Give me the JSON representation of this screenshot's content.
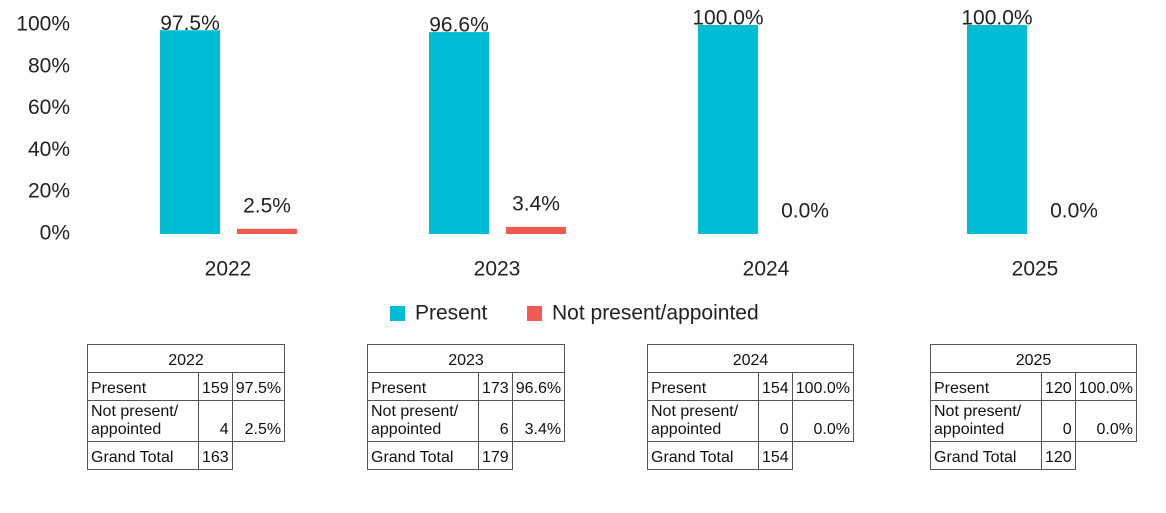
{
  "chart_data": {
    "type": "bar",
    "categories": [
      "2022",
      "2023",
      "2024",
      "2025"
    ],
    "series": [
      {
        "name": "Present",
        "color": "#00bcd4",
        "values": [
          97.5,
          96.6,
          100,
          100
        ],
        "value_labels": [
          "97.5%",
          "96.6%",
          "100.0%",
          "100.0%"
        ]
      },
      {
        "name": "Not present/appointed",
        "color": "#f05a50",
        "values": [
          2.5,
          3.4,
          0,
          0
        ],
        "value_labels": [
          "2.5%",
          "3.4%",
          "0.0%",
          "0.0%"
        ]
      }
    ],
    "ylim": [
      0,
      100
    ],
    "yticks": [
      {
        "value": 0,
        "label": "0%"
      },
      {
        "value": 20,
        "label": "20%"
      },
      {
        "value": 40,
        "label": "40%"
      },
      {
        "value": 60,
        "label": "60%"
      },
      {
        "value": 80,
        "label": "80%"
      },
      {
        "value": 100,
        "label": "100%"
      }
    ],
    "grid": false,
    "legend": "bottom"
  },
  "tables": [
    {
      "title": "2022",
      "rows": [
        [
          "Present",
          "159",
          "97.5%"
        ],
        [
          "Not present/ appointed",
          "4",
          "2.5%"
        ],
        [
          "Grand Total",
          "163"
        ]
      ]
    },
    {
      "title": "2023",
      "rows": [
        [
          "Present",
          "173",
          "96.6%"
        ],
        [
          "Not present/ appointed",
          "6",
          "3.4%"
        ],
        [
          "Grand Total",
          "179"
        ]
      ]
    },
    {
      "title": "2024",
      "rows": [
        [
          "Present",
          "154",
          "100.0%"
        ],
        [
          "Not present/ appointed",
          "0",
          "0.0%"
        ],
        [
          "Grand Total",
          "154"
        ]
      ]
    },
    {
      "title": "2025",
      "rows": [
        [
          "Present",
          "120",
          "100.0%"
        ],
        [
          "Not present/ appointed",
          "0",
          "0.0%"
        ],
        [
          "Grand Total",
          "120"
        ]
      ]
    }
  ]
}
